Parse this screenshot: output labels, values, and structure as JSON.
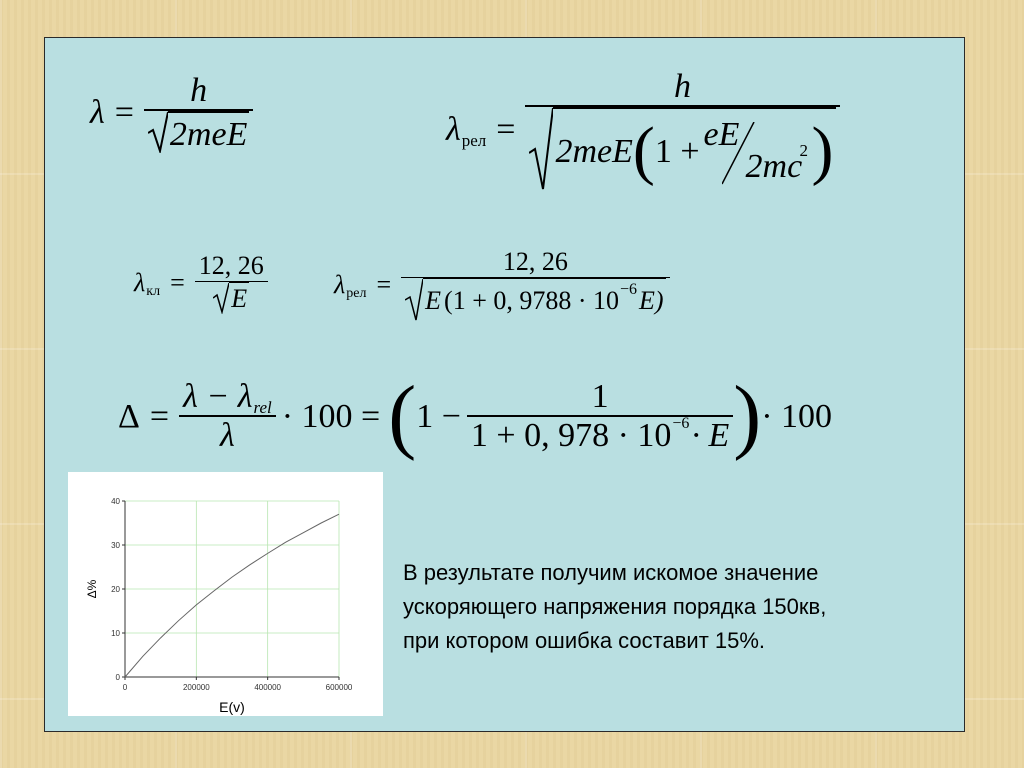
{
  "formulas": {
    "f1": {
      "lhs": "λ",
      "eq": "=",
      "num": "h",
      "den": "2meE"
    },
    "f2": {
      "lhs": "λ",
      "sub": "рел",
      "eq": "=",
      "num": "h",
      "den_a": "2meE",
      "paren_open": "(",
      "one_plus": "1 +",
      "inner_num": "eE",
      "inner_den": "2mc",
      "sq": "2",
      "paren_close": ")"
    },
    "f3": {
      "lhs": "λ",
      "sub": "кл",
      "eq": "=",
      "num": "12, 26",
      "den": "E"
    },
    "f4": {
      "lhs": "λ",
      "sub": "рел",
      "eq": "=",
      "num": "12, 26",
      "den_e": "E",
      "den_rest": "(1 + 0, 9788 · 10",
      "exp": "−6",
      "den_end": "E)"
    },
    "f5": {
      "lhs": "Δ",
      "eq": "=",
      "num_a": "λ − λ",
      "num_sub": "rel",
      "den": "λ",
      "mid": "· 100 =",
      "paren_open": "(",
      "one_minus": "1 −",
      "inner_num": "1",
      "inner_den": "1 + 0, 978 · 10",
      "inner_exp": "−6",
      "inner_den_end": "· E",
      "paren_close": ")",
      "tail": "· 100"
    }
  },
  "text": {
    "lines": [
      "В результате получим искомое значение",
      "ускоряющего напряжения порядка 150кв,",
      "при котором ошибка составит 15%."
    ]
  },
  "chart_data": {
    "type": "line",
    "xlabel": "E(v)",
    "ylabel": "Δ%",
    "xlim": [
      0,
      600000
    ],
    "ylim": [
      0,
      40
    ],
    "xticks": [
      "0",
      "200000",
      "400000",
      "600000"
    ],
    "yticks": [
      "0",
      "10",
      "20",
      "30",
      "40"
    ],
    "grid": true,
    "grid_color": "#b8e6b0",
    "x": [
      0,
      50000,
      100000,
      150000,
      200000,
      250000,
      300000,
      350000,
      400000,
      450000,
      500000,
      550000,
      600000
    ],
    "y": [
      0,
      4.7,
      8.9,
      12.8,
      16.4,
      19.6,
      22.7,
      25.5,
      28.1,
      30.6,
      32.8,
      35.0,
      37.0
    ]
  }
}
